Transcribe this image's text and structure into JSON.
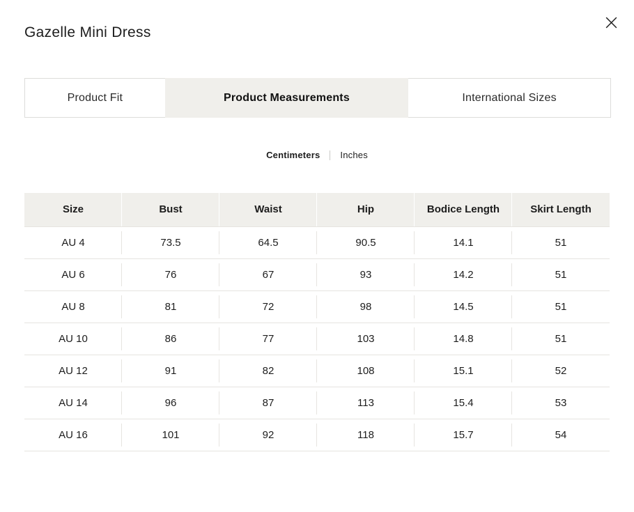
{
  "modal": {
    "title": "Gazelle Mini Dress",
    "close_label": "close"
  },
  "tabs": [
    {
      "label": "Product Fit",
      "slug": "product-fit",
      "active": false
    },
    {
      "label": "Product Measurements",
      "slug": "product-measurements",
      "active": true
    },
    {
      "label": "International Sizes",
      "slug": "international-sizes",
      "active": false
    }
  ],
  "unit_toggle": {
    "options": [
      {
        "label": "Centimeters",
        "slug": "centimeters",
        "active": true
      },
      {
        "label": "Inches",
        "slug": "inches",
        "active": false
      }
    ]
  },
  "table": {
    "headers": [
      "Size",
      "Bust",
      "Waist",
      "Hip",
      "Bodice Length",
      "Skirt Length"
    ],
    "rows": [
      [
        "AU 4",
        "73.5",
        "64.5",
        "90.5",
        "14.1",
        "51"
      ],
      [
        "AU 6",
        "76",
        "67",
        "93",
        "14.2",
        "51"
      ],
      [
        "AU 8",
        "81",
        "72",
        "98",
        "14.5",
        "51"
      ],
      [
        "AU 10",
        "86",
        "77",
        "103",
        "14.8",
        "51"
      ],
      [
        "AU 12",
        "91",
        "82",
        "108",
        "15.1",
        "52"
      ],
      [
        "AU 14",
        "96",
        "87",
        "113",
        "15.4",
        "53"
      ],
      [
        "AU 16",
        "101",
        "92",
        "118",
        "15.7",
        "54"
      ]
    ]
  },
  "colors": {
    "accent_bg": "#f0efeb",
    "border": "#e6e4e0",
    "text": "#1d1d1d"
  }
}
